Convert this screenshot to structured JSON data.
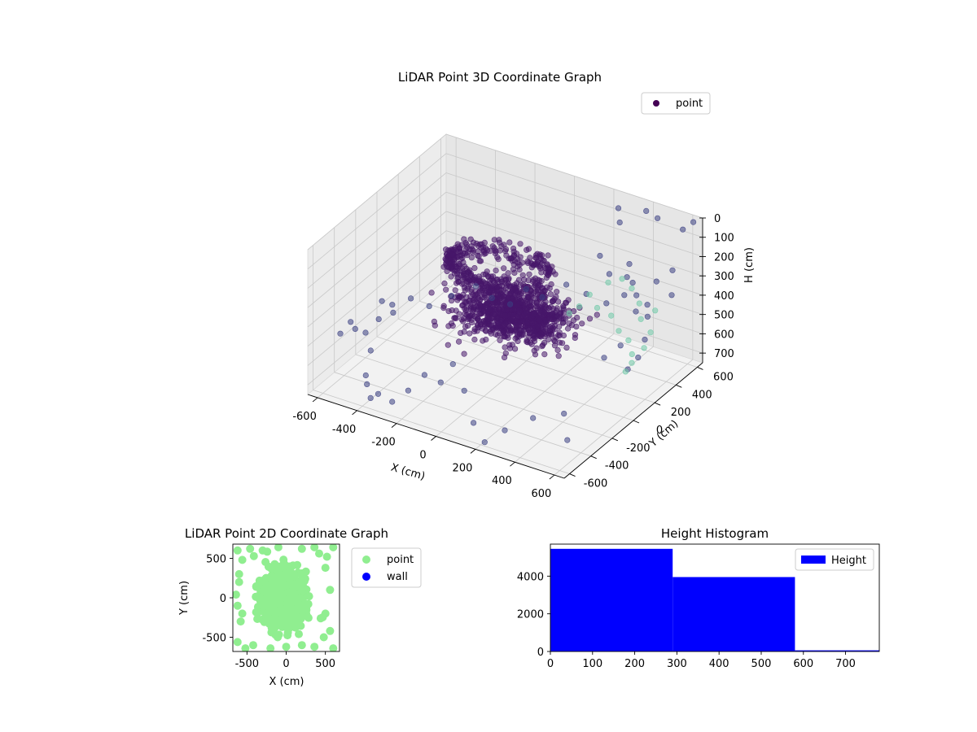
{
  "chart_data": [
    {
      "type": "scatter",
      "title": "LiDAR Point 3D Coordinate Graph",
      "xlabel": "X (cm)",
      "ylabel": "Y (cm)",
      "zlabel": "H (cm)",
      "xlim": [
        -650,
        650
      ],
      "ylim": [
        -650,
        650
      ],
      "zlim": [
        750,
        0
      ],
      "x_ticks": [
        "-600",
        "-400",
        "-200",
        "0",
        "200",
        "400",
        "600"
      ],
      "y_ticks": [
        "-600",
        "-400",
        "-200",
        "0",
        "200",
        "400",
        "600"
      ],
      "z_ticks": [
        "0",
        "100",
        "200",
        "300",
        "400",
        "500",
        "600",
        "700"
      ],
      "colormap": "viridis",
      "legend": {
        "placement": "top-right",
        "entries": [
          {
            "label": "point",
            "color": "#440154"
          }
        ]
      },
      "grid": true,
      "clusters": [
        {
          "kind": "ring",
          "center": [
            -40,
            60,
            230
          ],
          "radius_x": 260,
          "radius_y": 210,
          "count": 320
        },
        {
          "kind": "blob",
          "center": [
            -10,
            10,
            400
          ],
          "spread": [
            230,
            220,
            90
          ],
          "count": 700
        },
        {
          "kind": "blob",
          "center": [
            180,
            -60,
            360
          ],
          "spread": [
            150,
            120,
            70
          ],
          "count": 260
        }
      ],
      "outliers": [
        [
          -620,
          -260,
          580
        ],
        [
          -600,
          -200,
          620
        ],
        [
          -560,
          -150,
          560
        ],
        [
          -520,
          -300,
          640
        ],
        [
          -480,
          -420,
          700
        ],
        [
          -420,
          -520,
          680
        ],
        [
          -380,
          -560,
          720
        ],
        [
          -320,
          -600,
          660
        ],
        [
          -260,
          -580,
          690
        ],
        [
          -200,
          -540,
          630
        ],
        [
          -150,
          -480,
          560
        ],
        [
          -100,
          -420,
          610
        ],
        [
          -60,
          -380,
          520
        ],
        [
          30,
          -440,
          600
        ],
        [
          120,
          -520,
          700
        ],
        [
          220,
          -600,
          730
        ],
        [
          300,
          -560,
          660
        ],
        [
          400,
          -480,
          600
        ],
        [
          460,
          -300,
          640
        ],
        [
          520,
          -380,
          720
        ],
        [
          -500,
          40,
          520
        ],
        [
          -450,
          120,
          580
        ],
        [
          -380,
          200,
          540
        ],
        [
          -300,
          280,
          500
        ],
        [
          -240,
          320,
          560
        ],
        [
          -180,
          380,
          600
        ],
        [
          -120,
          420,
          520
        ],
        [
          -60,
          460,
          560
        ],
        [
          40,
          500,
          480
        ],
        [
          120,
          540,
          520
        ],
        [
          200,
          580,
          560
        ],
        [
          280,
          600,
          500
        ],
        [
          360,
          560,
          540
        ],
        [
          440,
          520,
          460
        ],
        [
          520,
          600,
          420
        ],
        [
          380,
          440,
          300
        ],
        [
          460,
          380,
          340
        ],
        [
          540,
          420,
          260
        ],
        [
          600,
          460,
          200
        ],
        [
          560,
          300,
          380
        ],
        [
          600,
          200,
          440
        ],
        [
          620,
          100,
          480
        ],
        [
          600,
          40,
          520
        ],
        [
          520,
          120,
          460
        ],
        [
          480,
          40,
          500
        ],
        [
          340,
          260,
          120
        ],
        [
          420,
          200,
          160
        ],
        [
          500,
          240,
          100
        ],
        [
          560,
          160,
          140
        ],
        [
          300,
          520,
          80
        ],
        [
          250,
          600,
          60
        ],
        [
          380,
          620,
          40
        ],
        [
          470,
          560,
          20
        ],
        [
          620,
          520,
          10
        ],
        [
          630,
          600,
          5
        ],
        [
          -560,
          -120,
          480
        ],
        [
          -540,
          -60,
          520
        ],
        [
          -600,
          -340,
          500
        ],
        [
          -620,
          -400,
          540
        ],
        [
          -460,
          -200,
          470
        ]
      ],
      "highlight_points": [
        [
          320,
          200,
          300
        ],
        [
          380,
          160,
          330
        ],
        [
          440,
          180,
          360
        ],
        [
          500,
          140,
          400
        ],
        [
          560,
          120,
          420
        ],
        [
          600,
          80,
          460
        ],
        [
          620,
          40,
          480
        ],
        [
          580,
          200,
          340
        ],
        [
          540,
          260,
          300
        ],
        [
          480,
          300,
          260
        ],
        [
          420,
          320,
          240
        ],
        [
          360,
          300,
          270
        ],
        [
          620,
          260,
          310
        ],
        [
          640,
          180,
          380
        ],
        [
          300,
          140,
          340
        ],
        [
          260,
          120,
          380
        ],
        [
          650,
          100,
          420
        ],
        [
          610,
          0,
          510
        ]
      ]
    },
    {
      "type": "scatter",
      "title": "LiDAR Point 2D Coordinate Graph",
      "xlabel": "X (cm)",
      "ylabel": "Y (cm)",
      "xlim": [
        -680,
        680
      ],
      "ylim": [
        -680,
        680
      ],
      "x_ticks": [
        "-500",
        "0",
        "500"
      ],
      "y_ticks": [
        "-500",
        "0",
        "500"
      ],
      "legend": {
        "placement": "outside-right",
        "entries": [
          {
            "label": "point",
            "color": "#90ee90"
          },
          {
            "label": "wall",
            "color": "#0000ff"
          }
        ]
      },
      "series": [
        {
          "name": "point",
          "color": "#90ee90",
          "center": [
            -60,
            0
          ],
          "spread": [
            190,
            260
          ],
          "count": 1600
        },
        {
          "name": "wall",
          "color": "#0000ff",
          "count": 0
        }
      ],
      "point_outliers": [
        [
          -620,
          600
        ],
        [
          -560,
          480
        ],
        [
          -600,
          300
        ],
        [
          -640,
          40
        ],
        [
          -580,
          -300
        ],
        [
          -620,
          -560
        ],
        [
          -520,
          -640
        ],
        [
          -420,
          -600
        ],
        [
          -200,
          -640
        ],
        [
          0,
          -620
        ],
        [
          200,
          -600
        ],
        [
          360,
          -620
        ],
        [
          480,
          -500
        ],
        [
          560,
          -420
        ],
        [
          600,
          -640
        ],
        [
          500,
          380
        ],
        [
          420,
          560
        ],
        [
          520,
          520
        ],
        [
          600,
          640
        ],
        [
          360,
          640
        ],
        [
          200,
          620
        ],
        [
          -100,
          640
        ],
        [
          -300,
          600
        ],
        [
          -460,
          620
        ],
        [
          -600,
          200
        ],
        [
          -620,
          -100
        ],
        [
          560,
          100
        ],
        [
          500,
          -200
        ],
        [
          440,
          -260
        ],
        [
          -560,
          -200
        ]
      ]
    },
    {
      "type": "bar",
      "title": "Height Histogram",
      "x_ticks": [
        "0",
        "100",
        "200",
        "300",
        "400",
        "500",
        "600",
        "700"
      ],
      "y_ticks": [
        "0",
        "2000",
        "4000"
      ],
      "xlim": [
        0,
        780
      ],
      "ylim": [
        0,
        5700
      ],
      "legend": {
        "placement": "top-right",
        "entries": [
          {
            "label": "Height",
            "color": "#0000ff"
          }
        ]
      },
      "series": [
        {
          "name": "Height",
          "color": "#0000ff",
          "bins": [
            {
              "start": 0,
              "end": 290,
              "count": 5450
            },
            {
              "start": 290,
              "end": 580,
              "count": 3950
            },
            {
              "start": 580,
              "end": 780,
              "count": 60
            }
          ]
        }
      ]
    }
  ]
}
